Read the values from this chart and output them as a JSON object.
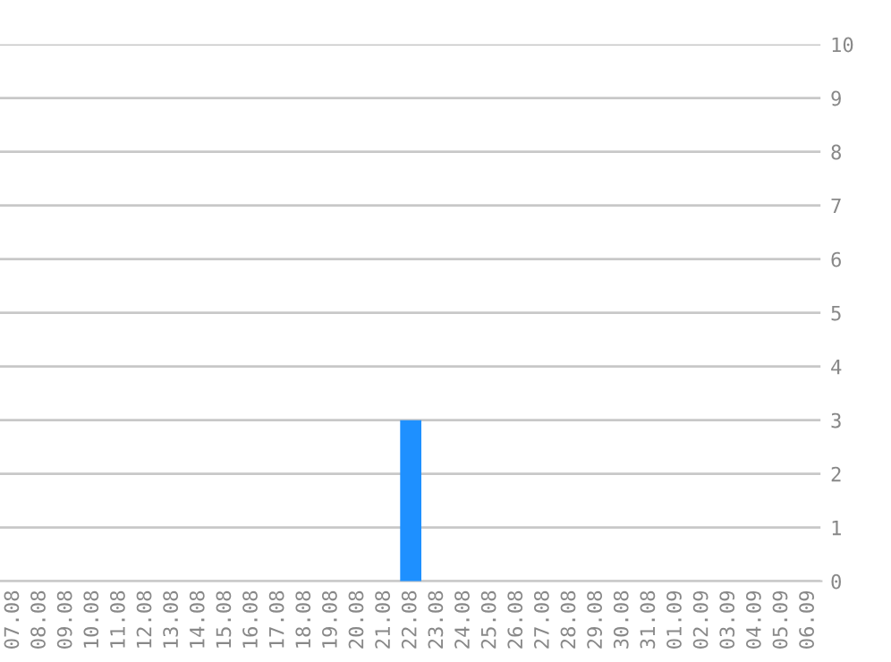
{
  "chart_data": {
    "type": "bar",
    "categories": [
      "07.08",
      "08.08",
      "09.08",
      "10.08",
      "11.08",
      "12.08",
      "13.08",
      "14.08",
      "15.08",
      "16.08",
      "17.08",
      "18.08",
      "19.08",
      "20.08",
      "21.08",
      "22.08",
      "23.08",
      "24.08",
      "25.08",
      "26.08",
      "27.08",
      "28.08",
      "29.08",
      "30.08",
      "31.08",
      "01.09",
      "02.09",
      "03.09",
      "04.09",
      "05.09",
      "06.09"
    ],
    "values": [
      0,
      0,
      0,
      0,
      0,
      0,
      0,
      0,
      0,
      0,
      0,
      0,
      0,
      0,
      0,
      3,
      0,
      0,
      0,
      0,
      0,
      0,
      0,
      0,
      0,
      0,
      0,
      0,
      0,
      0,
      0
    ],
    "color": "#1e90ff",
    "ylim": [
      0,
      10
    ],
    "yticks": [
      0,
      1,
      2,
      3,
      4,
      5,
      6,
      7,
      8,
      9,
      10
    ],
    "grid": "y"
  }
}
